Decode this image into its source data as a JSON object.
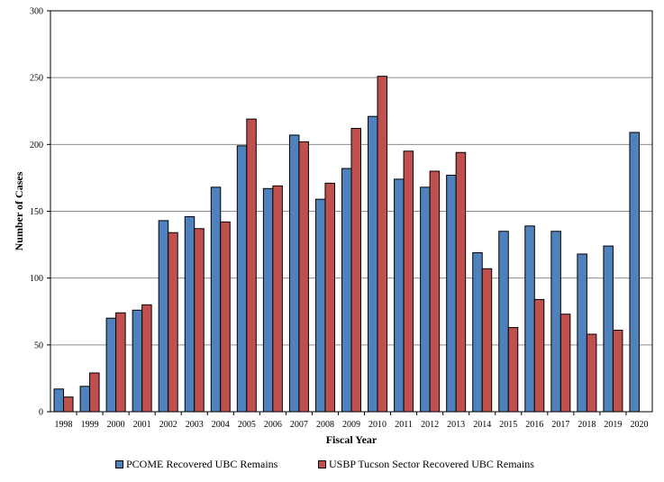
{
  "chart_data": {
    "type": "bar",
    "title": "",
    "xlabel": "Fiscal Year",
    "ylabel": "Number of Cases",
    "ylim": [
      0,
      300
    ],
    "yticks": [
      0,
      50,
      100,
      150,
      200,
      250,
      300
    ],
    "grid": true,
    "legend_position": "bottom",
    "categories": [
      "1998",
      "1999",
      "2000",
      "2001",
      "2002",
      "2003",
      "2004",
      "2005",
      "2006",
      "2007",
      "2008",
      "2009",
      "2010",
      "2011",
      "2012",
      "2013",
      "2014",
      "2015",
      "2016",
      "2017",
      "2018",
      "2019",
      "2020"
    ],
    "series": [
      {
        "name": "PCOME Recovered UBC Remains",
        "color": "#4f81bd",
        "values": [
          17,
          19,
          70,
          76,
          143,
          146,
          168,
          199,
          167,
          207,
          159,
          182,
          221,
          174,
          168,
          177,
          119,
          135,
          139,
          135,
          118,
          124,
          209
        ]
      },
      {
        "name": "USBP Tucson Sector Recovered UBC Remains",
        "color": "#c0504d",
        "values": [
          11,
          29,
          74,
          80,
          134,
          137,
          142,
          219,
          169,
          202,
          171,
          212,
          251,
          195,
          180,
          194,
          107,
          63,
          84,
          73,
          58,
          61,
          null
        ]
      }
    ]
  }
}
